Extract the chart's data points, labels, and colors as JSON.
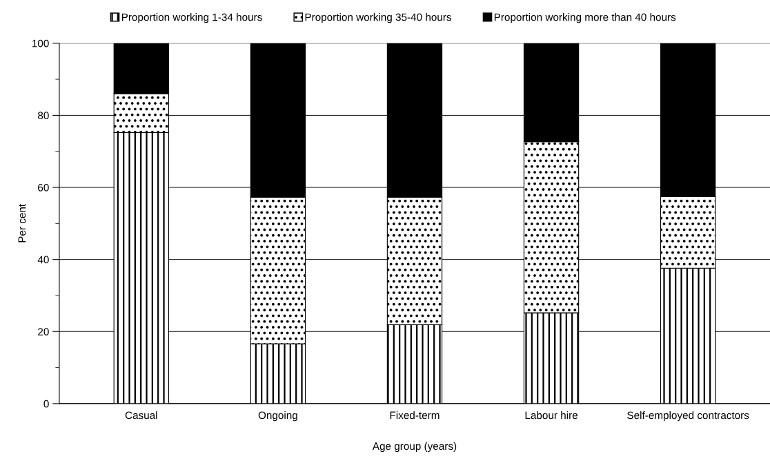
{
  "chart_data": {
    "type": "bar",
    "stacked": true,
    "xlabel": "Age group (years)",
    "ylabel": "Per cent",
    "categories": [
      "Casual",
      "Ongoing",
      "Fixed-term",
      "Labour hire",
      "Self-employed contractors"
    ],
    "series": [
      {
        "name": "Proportion working 1-34 hours",
        "color": "#000000",
        "values": [
          75.2,
          16.6,
          21.9,
          25.2,
          37.6
        ]
      },
      {
        "name": "Proportion working 35-40 hours",
        "color": "#000000",
        "values": [
          10.8,
          40.7,
          35.4,
          47.5,
          19.9
        ]
      },
      {
        "name": "Proportion working more than 40 hours",
        "color": "#000000",
        "values": [
          14.0,
          42.7,
          42.7,
          27.3,
          42.5
        ]
      }
    ],
    "ylim": [
      0,
      100
    ],
    "yticks": [
      0,
      {
        "value": 10,
        "label": null
      },
      20,
      {
        "value": 30,
        "label": null
      },
      40,
      {
        "value": 50,
        "label": null
      },
      60,
      {
        "value": 70,
        "label": null
      },
      80,
      {
        "value": 90,
        "label": null
      },
      100
    ],
    "grid": "y",
    "legend": "top"
  }
}
